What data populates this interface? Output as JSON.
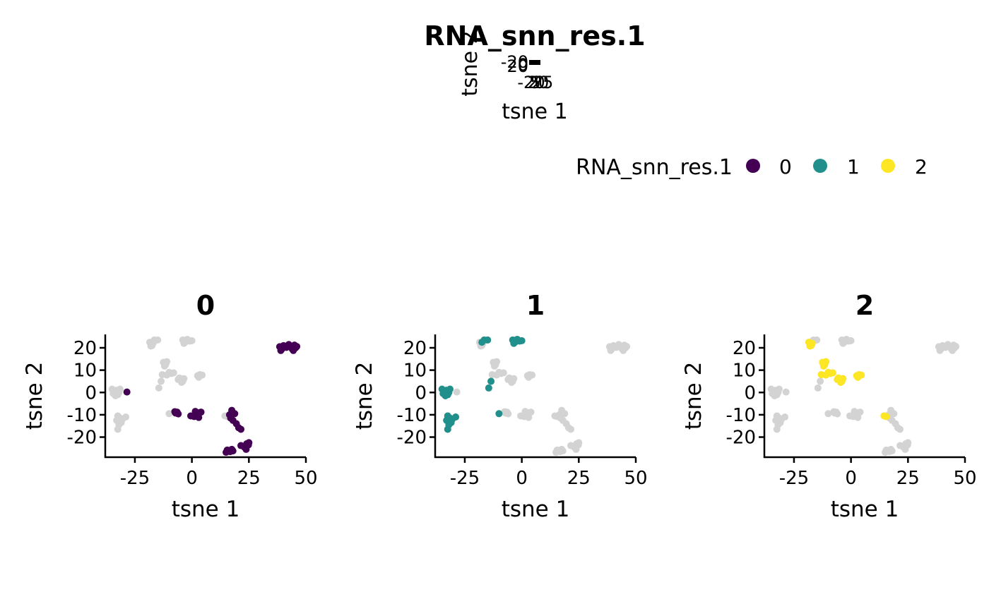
{
  "title": "RNA_snn_res.1",
  "legend": {
    "title": "RNA_snn_res.1",
    "placement": "top-right",
    "entries": [
      {
        "label": "0",
        "color": "#440154"
      },
      {
        "label": "1",
        "color": "#21908C"
      },
      {
        "label": "2",
        "color": "#FDE725"
      }
    ]
  },
  "background_color": "#D3D3D3",
  "mini_axes": {
    "xlabel": "tsne 1",
    "ylabel": "tsne 2",
    "xtick_labels": [
      "-20",
      "5",
      "20",
      "25"
    ],
    "ytick_labels": [
      "-20",
      "0",
      "20"
    ]
  },
  "chart_data": {
    "type": "scatter",
    "xlabel": "tsne 1",
    "ylabel": "tsne 2",
    "xlim": [
      -38,
      50
    ],
    "ylim": [
      -29,
      26
    ],
    "xticks": [
      -25,
      0,
      25,
      50
    ],
    "xtick_labels": [
      "-25",
      "0",
      "25",
      "50"
    ],
    "yticks": [
      -20,
      -10,
      0,
      10,
      20
    ],
    "ytick_labels": [
      "-20",
      "-10",
      "0",
      "10",
      "20"
    ],
    "grid": false,
    "facets": [
      "0",
      "1",
      "2"
    ],
    "series": [
      {
        "name": "0",
        "color": "#440154",
        "points": [
          [
            -28.5,
            0.2
          ],
          [
            -6.5,
            -8.8
          ],
          [
            -7.2,
            -9.2
          ],
          [
            -6.0,
            -9.6
          ],
          [
            -7.5,
            -8.6
          ],
          [
            1.5,
            -8.5
          ],
          [
            3.5,
            -9.0
          ],
          [
            2.5,
            -10.2
          ],
          [
            1.0,
            -10.8
          ],
          [
            -0.5,
            -10.5
          ],
          [
            3.0,
            -11.2
          ],
          [
            2.0,
            -9.6
          ],
          [
            4.0,
            -8.8
          ],
          [
            17.5,
            -8.0
          ],
          [
            16.5,
            -10.0
          ],
          [
            17.0,
            -11.5
          ],
          [
            18.0,
            -12.5
          ],
          [
            19.5,
            -14.0
          ],
          [
            20.5,
            -15.8
          ],
          [
            21.5,
            -16.5
          ],
          [
            18.8,
            -9.5
          ],
          [
            15.5,
            -25.8
          ],
          [
            16.8,
            -26.5
          ],
          [
            17.5,
            -25.5
          ],
          [
            15.0,
            -26.8
          ],
          [
            18.0,
            -26.2
          ],
          [
            21.5,
            -23.8
          ],
          [
            23.0,
            -24.5
          ],
          [
            24.0,
            -23.0
          ],
          [
            25.0,
            -22.5
          ],
          [
            23.8,
            -25.5
          ],
          [
            24.8,
            -23.5
          ],
          [
            38.5,
            20.5
          ],
          [
            39.5,
            19.5
          ],
          [
            40.2,
            21.0
          ],
          [
            41.5,
            20.2
          ],
          [
            43.0,
            20.8
          ],
          [
            44.0,
            19.5
          ],
          [
            45.0,
            21.2
          ],
          [
            45.5,
            20.0
          ],
          [
            44.5,
            18.8
          ],
          [
            39.0,
            18.8
          ],
          [
            42.5,
            21.5
          ],
          [
            46.0,
            20.6
          ]
        ]
      },
      {
        "name": "1",
        "color": "#21908C",
        "points": [
          [
            -35.0,
            1.5
          ],
          [
            -34.0,
            0.5
          ],
          [
            -33.5,
            -1.5
          ],
          [
            -32.0,
            0.0
          ],
          [
            -31.5,
            1.5
          ],
          [
            -32.5,
            -1.0
          ],
          [
            -34.5,
            -0.5
          ],
          [
            -33.0,
            1.0
          ],
          [
            -32.5,
            -10.5
          ],
          [
            -31.5,
            -11.5
          ],
          [
            -33.0,
            -12.5
          ],
          [
            -32.0,
            -14.5
          ],
          [
            -32.5,
            -16.5
          ],
          [
            -30.5,
            -12.0
          ],
          [
            -29.0,
            -11.0
          ],
          [
            -31.0,
            -13.5
          ],
          [
            -16.5,
            23.5
          ],
          [
            -15.0,
            23.5
          ],
          [
            -17.5,
            22.5
          ],
          [
            -4.0,
            23.5
          ],
          [
            -3.0,
            22.5
          ],
          [
            -2.0,
            23.8
          ],
          [
            -1.0,
            23.0
          ],
          [
            0.0,
            23.2
          ],
          [
            -3.5,
            22.0
          ],
          [
            -13.5,
            5.0
          ],
          [
            -14.5,
            2.0
          ],
          [
            -10.0,
            -9.5
          ]
        ]
      },
      {
        "name": "2",
        "color": "#FDE725",
        "points": [
          [
            -18.5,
            22.5
          ],
          [
            -17.5,
            21.0
          ],
          [
            -17.0,
            22.0
          ],
          [
            -18.0,
            20.8
          ],
          [
            -12.5,
            13.5
          ],
          [
            -11.5,
            12.5
          ],
          [
            -11.0,
            13.8
          ],
          [
            -12.0,
            11.8
          ],
          [
            -13.0,
            8.0
          ],
          [
            -10.0,
            9.0
          ],
          [
            -9.0,
            8.5
          ],
          [
            -8.0,
            8.8
          ],
          [
            -11.0,
            7.8
          ],
          [
            -5.5,
            6.5
          ],
          [
            -5.0,
            5.5
          ],
          [
            -4.0,
            5.0
          ],
          [
            -3.5,
            6.2
          ],
          [
            -6.0,
            5.8
          ],
          [
            -4.5,
            4.5
          ],
          [
            2.5,
            7.5
          ],
          [
            3.5,
            8.0
          ],
          [
            4.5,
            7.8
          ],
          [
            3.0,
            6.8
          ],
          [
            14.5,
            -10.5
          ],
          [
            15.5,
            -10.8
          ]
        ]
      }
    ]
  }
}
